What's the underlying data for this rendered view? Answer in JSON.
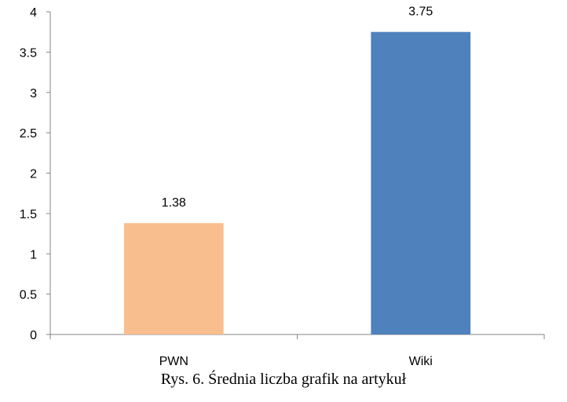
{
  "chart_data": {
    "type": "bar",
    "categories": [
      "PWN",
      "Wiki"
    ],
    "values": [
      1.38,
      3.75
    ],
    "data_labels": [
      "1.38",
      "3.75"
    ],
    "bar_colors": [
      "#F8BE8D",
      "#4F81BD"
    ],
    "ylim": [
      0,
      4
    ],
    "y_ticks": [
      0,
      0.5,
      1,
      1.5,
      2,
      2.5,
      3,
      3.5,
      4
    ],
    "y_tick_labels": [
      "0",
      "0.5",
      "1",
      "1.5",
      "2",
      "2.5",
      "3",
      "3.5",
      "4"
    ],
    "grid": false,
    "legend": "none",
    "title": "",
    "xlabel": "",
    "ylabel": ""
  },
  "caption": "Rys. 6. Średnia liczba grafik na artykuł",
  "axis_color": "#868686"
}
